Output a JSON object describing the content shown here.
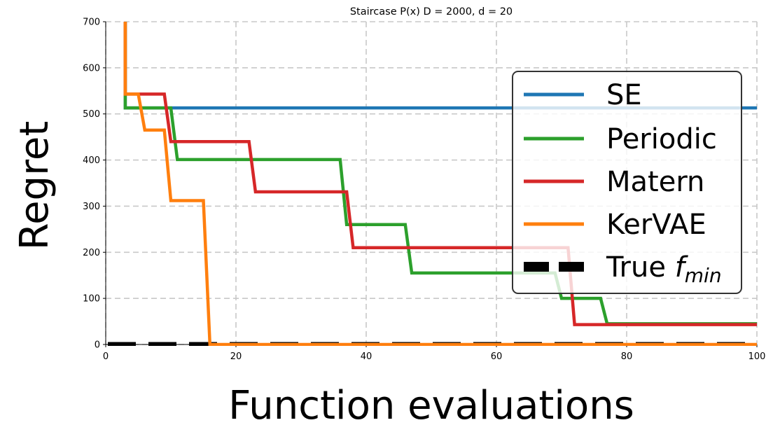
{
  "chart_data": {
    "type": "line",
    "title": "Staircase P(x) D = 2000, d = 20",
    "xlabel": "Function evaluations",
    "ylabel": "Regret",
    "xlim": [
      0,
      100
    ],
    "ylim": [
      0,
      700
    ],
    "xticks": [
      0,
      20,
      40,
      60,
      80,
      100
    ],
    "yticks": [
      0,
      100,
      200,
      300,
      400,
      500,
      600,
      700
    ],
    "grid": true,
    "legend_position": "right",
    "series": [
      {
        "name": "SE",
        "color": "#1f77b4",
        "style": "solid",
        "points": [
          [
            3,
            760
          ],
          [
            3,
            513
          ],
          [
            100,
            513
          ]
        ]
      },
      {
        "name": "Periodic",
        "color": "#2ca02c",
        "style": "solid",
        "points": [
          [
            3,
            700
          ],
          [
            3,
            513
          ],
          [
            10,
            513
          ],
          [
            11,
            401
          ],
          [
            36,
            401
          ],
          [
            37,
            260
          ],
          [
            46,
            260
          ],
          [
            47,
            155
          ],
          [
            69,
            155
          ],
          [
            70,
            100
          ],
          [
            76,
            100
          ],
          [
            77,
            45
          ],
          [
            100,
            45
          ]
        ]
      },
      {
        "name": "Matern",
        "color": "#d62728",
        "style": "solid",
        "points": [
          [
            3,
            700
          ],
          [
            3,
            543
          ],
          [
            9,
            543
          ],
          [
            10,
            440
          ],
          [
            22,
            440
          ],
          [
            23,
            331
          ],
          [
            37,
            331
          ],
          [
            38,
            210
          ],
          [
            71,
            210
          ],
          [
            72,
            43
          ],
          [
            100,
            43
          ]
        ]
      },
      {
        "name": "KerVAE",
        "color": "#ff7f0e",
        "style": "solid",
        "points": [
          [
            3,
            760
          ],
          [
            3,
            543
          ],
          [
            5,
            543
          ],
          [
            6,
            465
          ],
          [
            9,
            465
          ],
          [
            10,
            312
          ],
          [
            15,
            312
          ],
          [
            16,
            0
          ],
          [
            100,
            0
          ]
        ]
      },
      {
        "name": "True f_min",
        "color": "#000000",
        "style": "dashed",
        "points": [
          [
            0,
            0
          ],
          [
            100,
            0
          ]
        ]
      }
    ],
    "legend": [
      {
        "label": "SE",
        "color": "#1f77b4",
        "style": "solid"
      },
      {
        "label": "Periodic",
        "color": "#2ca02c",
        "style": "solid"
      },
      {
        "label": "Matern",
        "color": "#d62728",
        "style": "solid"
      },
      {
        "label": "KerVAE",
        "color": "#ff7f0e",
        "style": "solid"
      },
      {
        "label": "True f_min",
        "color": "#000000",
        "style": "dashed",
        "label_main": "True ",
        "label_math": "f",
        "label_sub": "min"
      }
    ]
  }
}
